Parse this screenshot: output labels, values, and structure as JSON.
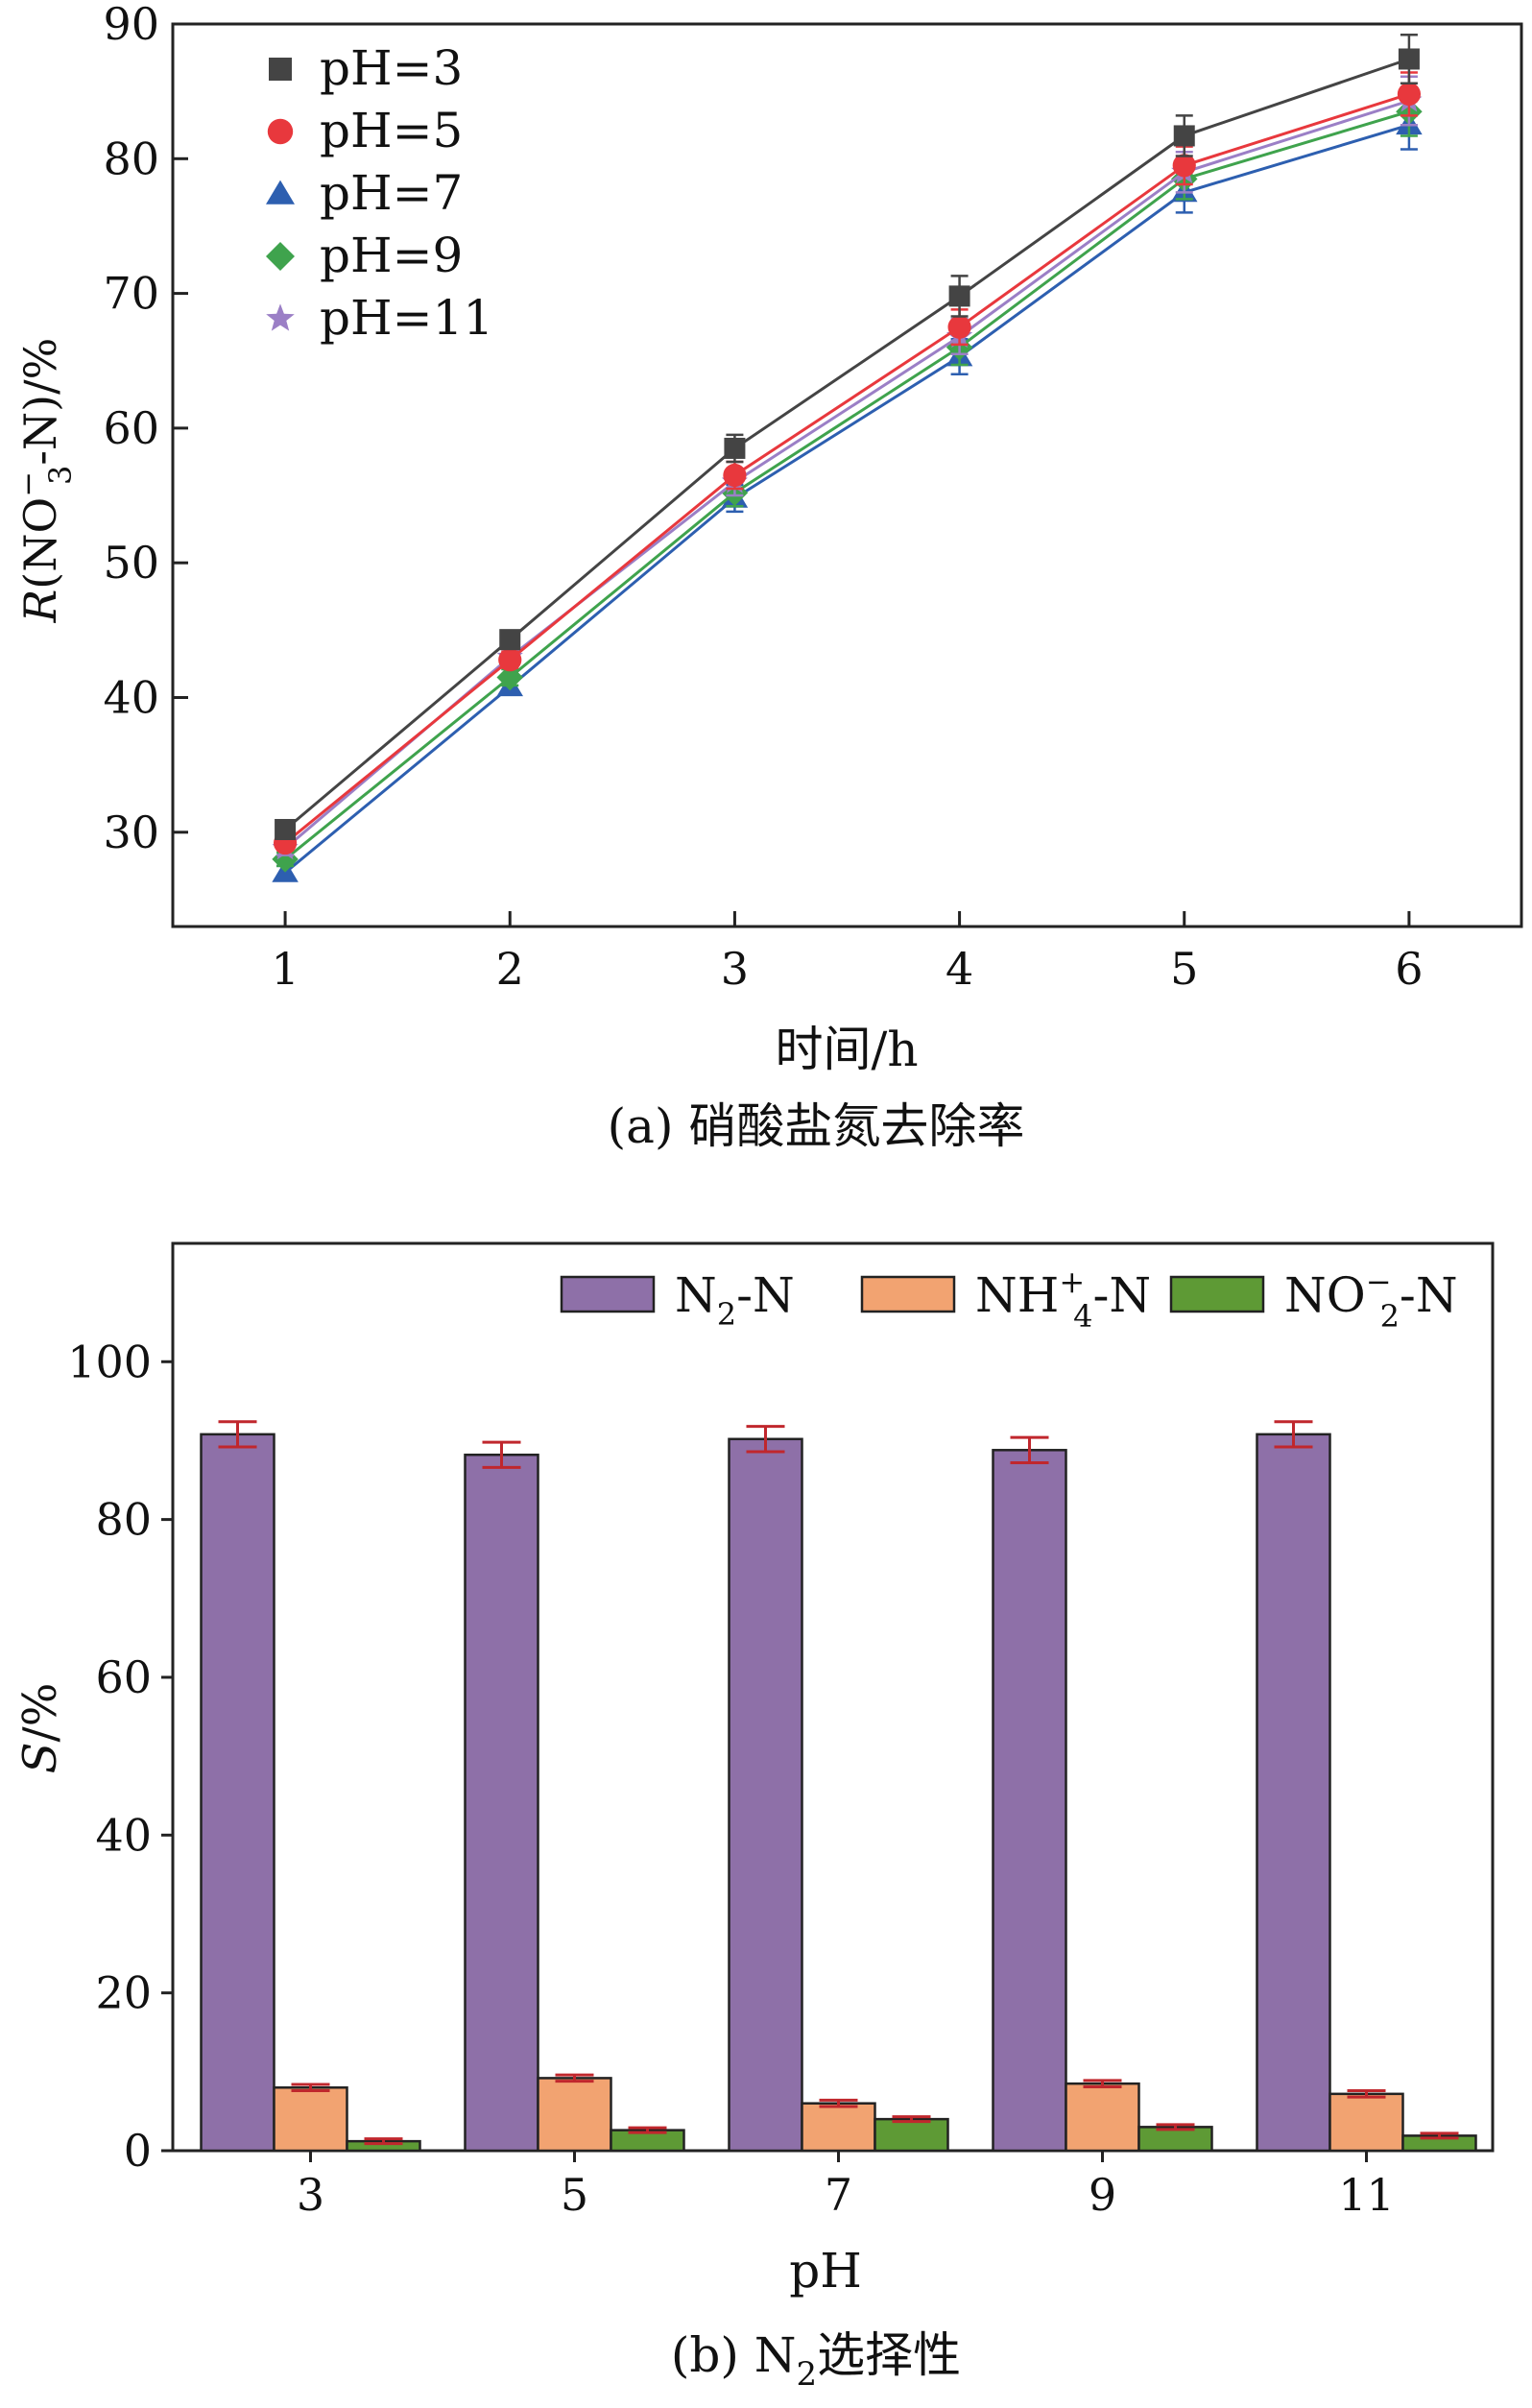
{
  "chart_data": [
    {
      "type": "line",
      "x": [
        1,
        2,
        3,
        4,
        5,
        6
      ],
      "xlabel": "时间/h",
      "ylabel": "R(NO₃⁻-N)/%",
      "ylabel_parts": {
        "italic": "R",
        "rest1": "(NO",
        "sup": "−",
        "sub": "3",
        "rest2": "-N)/%"
      },
      "xlim": [
        0.5,
        6.5
      ],
      "ylim": [
        23,
        90
      ],
      "xticks": [
        "1",
        "2",
        "3",
        "4",
        "5",
        "6"
      ],
      "yticks": [
        "30",
        "40",
        "50",
        "60",
        "70",
        "80",
        "90"
      ],
      "caption": "(a) 硝酸盐氮去除率",
      "grid": false,
      "legend_position": "top-left",
      "series": [
        {
          "name": "pH=3",
          "color": "#444444",
          "marker": "square",
          "values": [
            30.2,
            44.3,
            58.5,
            69.8,
            81.7,
            87.4
          ],
          "err": [
            0.5,
            0.6,
            1.0,
            1.5,
            1.5,
            1.8
          ]
        },
        {
          "name": "pH=5",
          "color": "#e8383d",
          "marker": "circle",
          "values": [
            29.2,
            42.8,
            56.5,
            67.5,
            79.5,
            84.8
          ],
          "err": [
            0.5,
            0.6,
            1.0,
            1.3,
            1.4,
            1.6
          ]
        },
        {
          "name": "pH=7",
          "color": "#2d5fb0",
          "marker": "triangle",
          "values": [
            27.0,
            40.8,
            54.8,
            65.3,
            77.5,
            82.5
          ],
          "err": [
            0.5,
            0.6,
            1.0,
            1.3,
            1.5,
            1.8
          ]
        },
        {
          "name": "pH=9",
          "color": "#3fa34d",
          "marker": "diamond",
          "values": [
            28.0,
            41.5,
            55.2,
            66.0,
            78.5,
            83.5
          ],
          "err": [
            0.5,
            0.6,
            1.0,
            1.3,
            1.5,
            1.8
          ]
        },
        {
          "name": "pH=11",
          "color": "#9b7fc6",
          "marker": "star",
          "values": [
            28.8,
            43.0,
            56.0,
            66.8,
            79.0,
            84.3
          ],
          "err": [
            0.5,
            0.6,
            1.0,
            1.3,
            1.5,
            1.8
          ]
        }
      ]
    },
    {
      "type": "bar",
      "categories": [
        "3",
        "5",
        "7",
        "9",
        "11"
      ],
      "xlabel": "pH",
      "ylabel": "S/%",
      "ylabel_parts": {
        "italic": "S",
        "rest": "/%"
      },
      "ylim": [
        0,
        115
      ],
      "yticks": [
        "0",
        "20",
        "40",
        "60",
        "80",
        "100"
      ],
      "caption_prefix": "(b) N",
      "caption_sub": "2",
      "caption_suffix": "选择性",
      "grid": false,
      "legend_position": "top-right",
      "error_color": "#c0272d",
      "series": [
        {
          "name": "N₂-N",
          "name_base": "N",
          "name_sub": "2",
          "name_sup": "",
          "name_tail": "-N",
          "color": "#8e70a8",
          "values": [
            90.8,
            88.2,
            90.2,
            88.8,
            90.8
          ],
          "err": [
            1.6,
            1.6,
            1.6,
            1.6,
            1.6
          ]
        },
        {
          "name": "NH₄⁺-N",
          "name_base": "NH",
          "name_sub": "4",
          "name_sup": "+",
          "name_tail": "-N",
          "color": "#f2a371",
          "values": [
            8.0,
            9.2,
            6.0,
            8.5,
            7.2
          ],
          "err": [
            0.4,
            0.4,
            0.4,
            0.4,
            0.4
          ]
        },
        {
          "name": "NO₂⁻-N",
          "name_base": "NO",
          "name_sub": "2",
          "name_sup": "−",
          "name_tail": "-N",
          "color": "#5e9a35",
          "values": [
            1.2,
            2.6,
            4.0,
            3.0,
            1.9
          ],
          "err": [
            0.3,
            0.3,
            0.3,
            0.3,
            0.3
          ]
        }
      ]
    }
  ]
}
